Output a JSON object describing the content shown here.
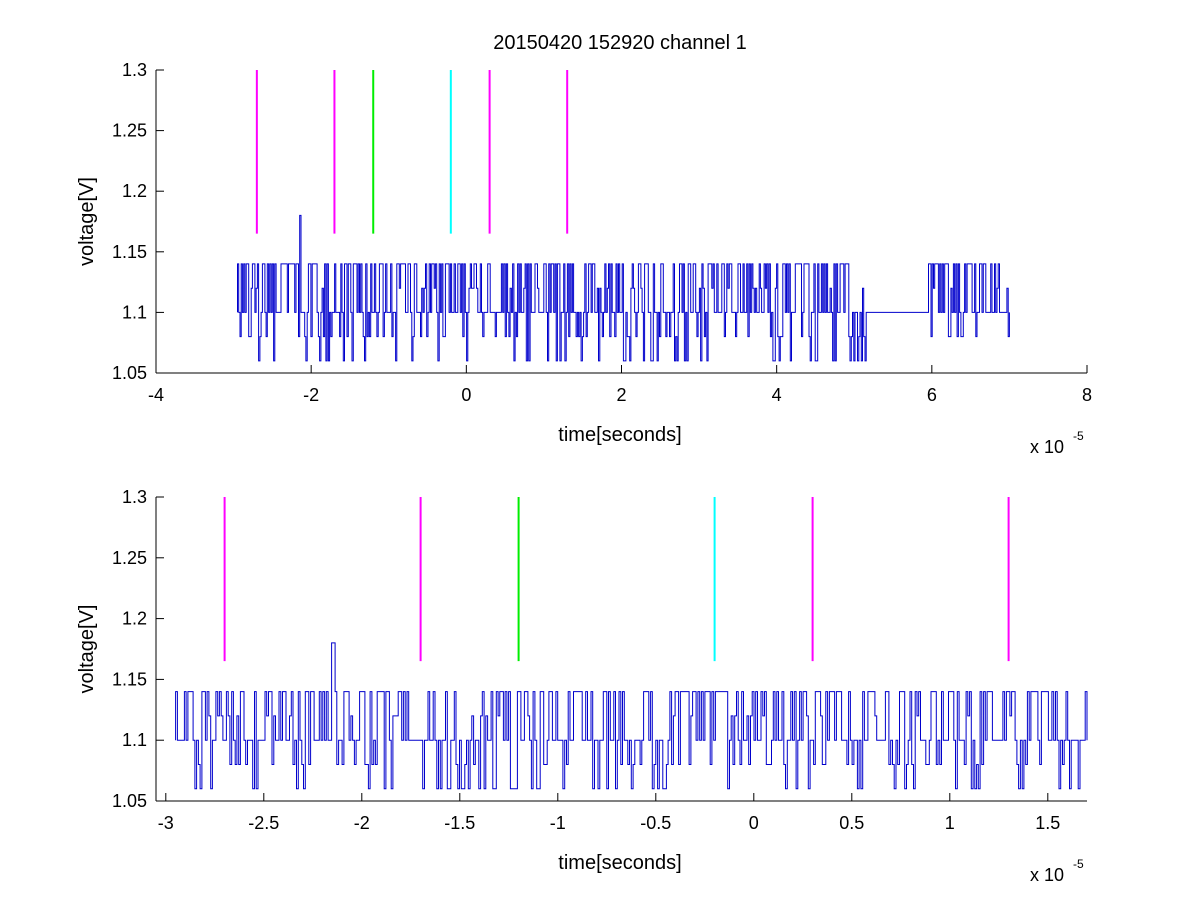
{
  "figure": {
    "title": "20150420 152920 channel 1"
  },
  "colors": {
    "trace": "#0000cc",
    "magenta": "#ff00ff",
    "green": "#00ee00",
    "cyan": "#00ffff",
    "axis": "#000000"
  },
  "chart_data": [
    {
      "type": "line",
      "title": "20150420 152920 channel 1",
      "xlabel": "time[seconds]",
      "ylabel": "voltage[V]",
      "x_multiplier_label": "x 10",
      "x_multiplier_exponent": "-5",
      "xlim": [
        -4,
        8
      ],
      "ylim": [
        1.05,
        1.3
      ],
      "xticks": [
        -4,
        -2,
        0,
        2,
        4,
        6,
        8
      ],
      "xtick_labels": [
        "-4",
        "-2",
        "0",
        "2",
        "4",
        "6",
        "8"
      ],
      "yticks": [
        1.05,
        1.1,
        1.15,
        1.2,
        1.25,
        1.3
      ],
      "ytick_labels": [
        "1.05",
        "1.1",
        "1.15",
        "1.2",
        "1.25",
        "1.3"
      ],
      "grid": false,
      "series": [
        {
          "color": "#0000cc",
          "x_range": [
            -2.95,
            7.0
          ],
          "baseline": 1.1,
          "levels": [
            1.06,
            1.08,
            1.1,
            1.12,
            1.14
          ],
          "spike": {
            "x": -2.15,
            "y": 1.18
          },
          "gaps": [
            [
              5.15,
              5.95
            ]
          ]
        }
      ],
      "markers": [
        {
          "x": -2.7,
          "color": "magenta",
          "y_range": [
            1.165,
            1.3
          ]
        },
        {
          "x": -1.7,
          "color": "magenta",
          "y_range": [
            1.165,
            1.3
          ]
        },
        {
          "x": -1.2,
          "color": "green",
          "y_range": [
            1.165,
            1.3
          ]
        },
        {
          "x": -0.2,
          "color": "cyan",
          "y_range": [
            1.165,
            1.3
          ]
        },
        {
          "x": 0.3,
          "color": "magenta",
          "y_range": [
            1.165,
            1.3
          ]
        },
        {
          "x": 1.3,
          "color": "magenta",
          "y_range": [
            1.165,
            1.3
          ]
        }
      ]
    },
    {
      "type": "line",
      "title": "",
      "xlabel": "time[seconds]",
      "ylabel": "voltage[V]",
      "x_multiplier_label": "x 10",
      "x_multiplier_exponent": "-5",
      "xlim": [
        -3.05,
        1.7
      ],
      "ylim": [
        1.05,
        1.3
      ],
      "xticks": [
        -3,
        -2.5,
        -2,
        -1.5,
        -1,
        -0.5,
        0,
        0.5,
        1,
        1.5
      ],
      "xtick_labels": [
        "-3",
        "-2.5",
        "-2",
        "-1.5",
        "-1",
        "-0.5",
        "0",
        "0.5",
        "1",
        "1.5"
      ],
      "yticks": [
        1.05,
        1.1,
        1.15,
        1.2,
        1.25,
        1.3
      ],
      "ytick_labels": [
        "1.05",
        "1.1",
        "1.15",
        "1.2",
        "1.25",
        "1.3"
      ],
      "grid": false,
      "series": [
        {
          "color": "#0000cc",
          "x_range": [
            -2.95,
            1.7
          ],
          "baseline": 1.1,
          "levels": [
            1.06,
            1.08,
            1.1,
            1.12,
            1.14
          ],
          "spike": {
            "x": -2.15,
            "y": 1.18
          },
          "gaps": []
        }
      ],
      "markers": [
        {
          "x": -2.7,
          "color": "magenta",
          "y_range": [
            1.165,
            1.3
          ]
        },
        {
          "x": -1.7,
          "color": "magenta",
          "y_range": [
            1.165,
            1.3
          ]
        },
        {
          "x": -1.2,
          "color": "green",
          "y_range": [
            1.165,
            1.3
          ]
        },
        {
          "x": -0.2,
          "color": "cyan",
          "y_range": [
            1.165,
            1.3
          ]
        },
        {
          "x": 0.3,
          "color": "magenta",
          "y_range": [
            1.165,
            1.3
          ]
        },
        {
          "x": 1.3,
          "color": "magenta",
          "y_range": [
            1.165,
            1.3
          ]
        }
      ]
    }
  ]
}
